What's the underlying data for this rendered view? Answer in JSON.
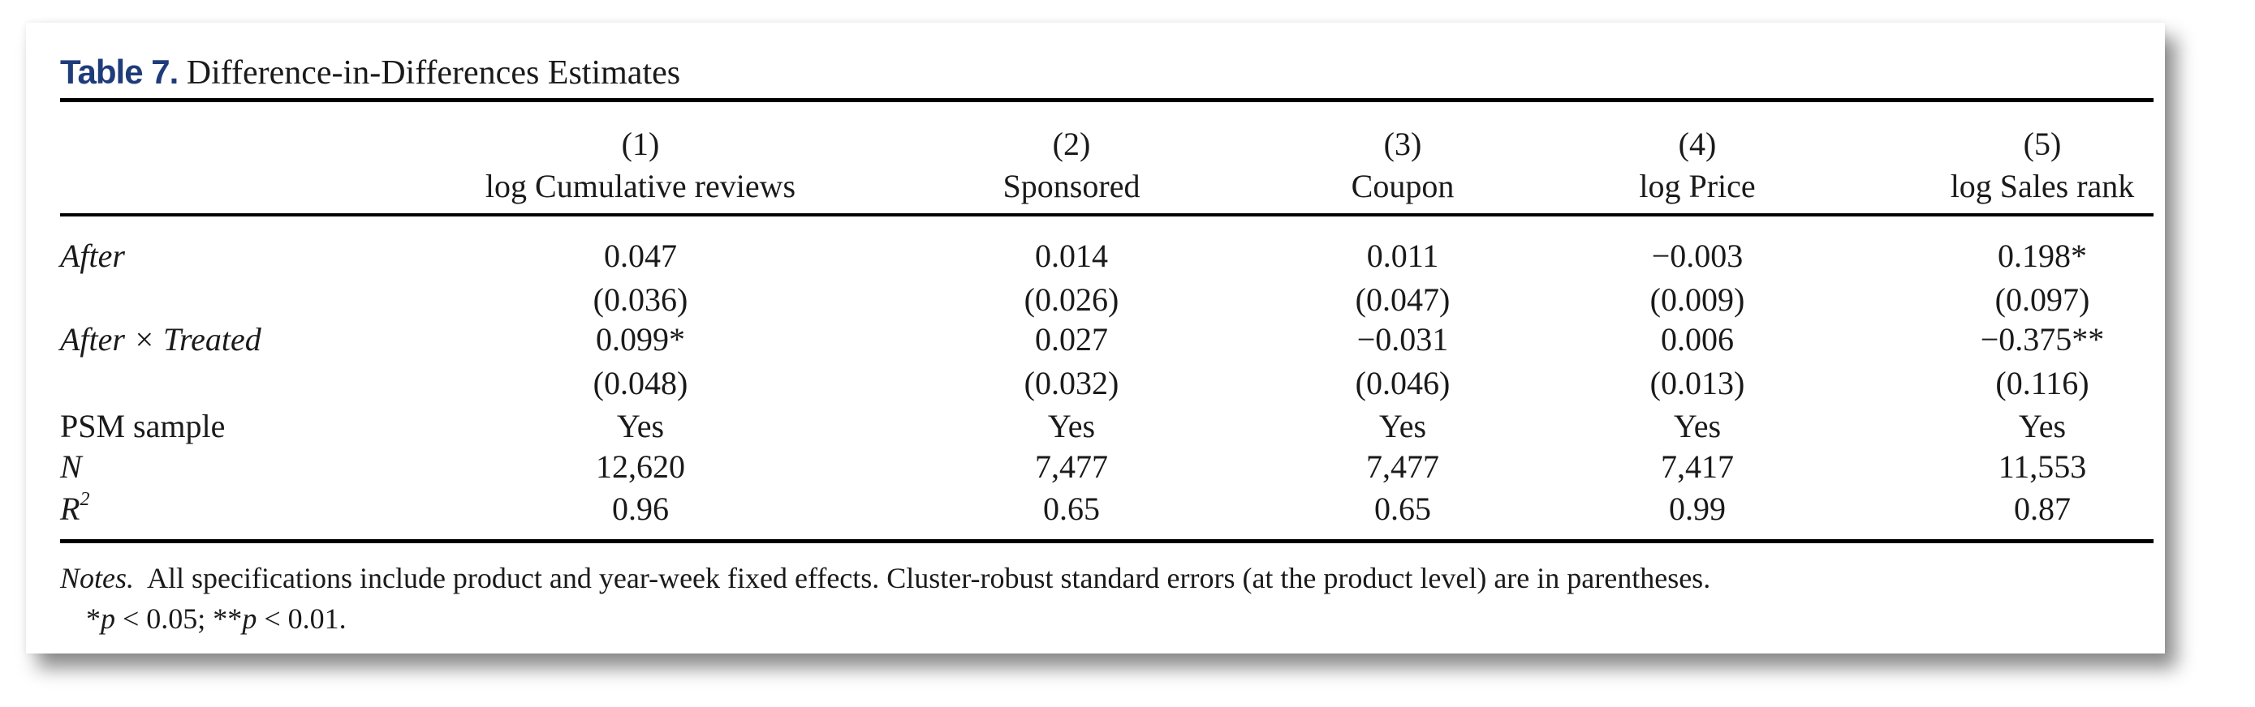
{
  "table": {
    "label": "Table 7.",
    "title": "Difference-in-Differences Estimates",
    "columns": [
      {
        "number": "(1)",
        "name": "log Cumulative reviews"
      },
      {
        "number": "(2)",
        "name": "Sponsored"
      },
      {
        "number": "(3)",
        "name": "Coupon"
      },
      {
        "number": "(4)",
        "name": "log Price"
      },
      {
        "number": "(5)",
        "name": "log Sales rank"
      }
    ],
    "rows": [
      {
        "label": "After",
        "italic": true,
        "values": [
          "0.047",
          "0.014",
          "0.011",
          "−0.003",
          "0.198*"
        ]
      },
      {
        "label": "",
        "italic": false,
        "values": [
          "(0.036)",
          "(0.026)",
          "(0.047)",
          "(0.009)",
          "(0.097)"
        ]
      },
      {
        "label": "After × Treated",
        "italic": true,
        "values": [
          "0.099*",
          "0.027",
          "−0.031",
          "0.006",
          "−0.375**"
        ]
      },
      {
        "label": "",
        "italic": false,
        "values": [
          "(0.048)",
          "(0.032)",
          "(0.046)",
          "(0.013)",
          "(0.116)"
        ]
      },
      {
        "label": "PSM sample",
        "italic": false,
        "values": [
          "Yes",
          "Yes",
          "Yes",
          "Yes",
          "Yes"
        ]
      },
      {
        "label": "N",
        "italic": true,
        "values": [
          "12,620",
          "7,477",
          "7,477",
          "7,417",
          "11,553"
        ]
      },
      {
        "label": "R",
        "sup": "2",
        "italic": true,
        "values": [
          "0.96",
          "0.65",
          "0.65",
          "0.99",
          "0.87"
        ]
      }
    ],
    "notes_label": "Notes.",
    "notes_text": "All specifications include product and year-week fixed effects. Cluster-robust standard errors (at the product level) are in parentheses.",
    "significance": "*p < 0.05; **p < 0.01.",
    "colors": {
      "label_blue": "#1f3c7a",
      "text": "#1a1a1a",
      "rules": "#000000"
    }
  }
}
